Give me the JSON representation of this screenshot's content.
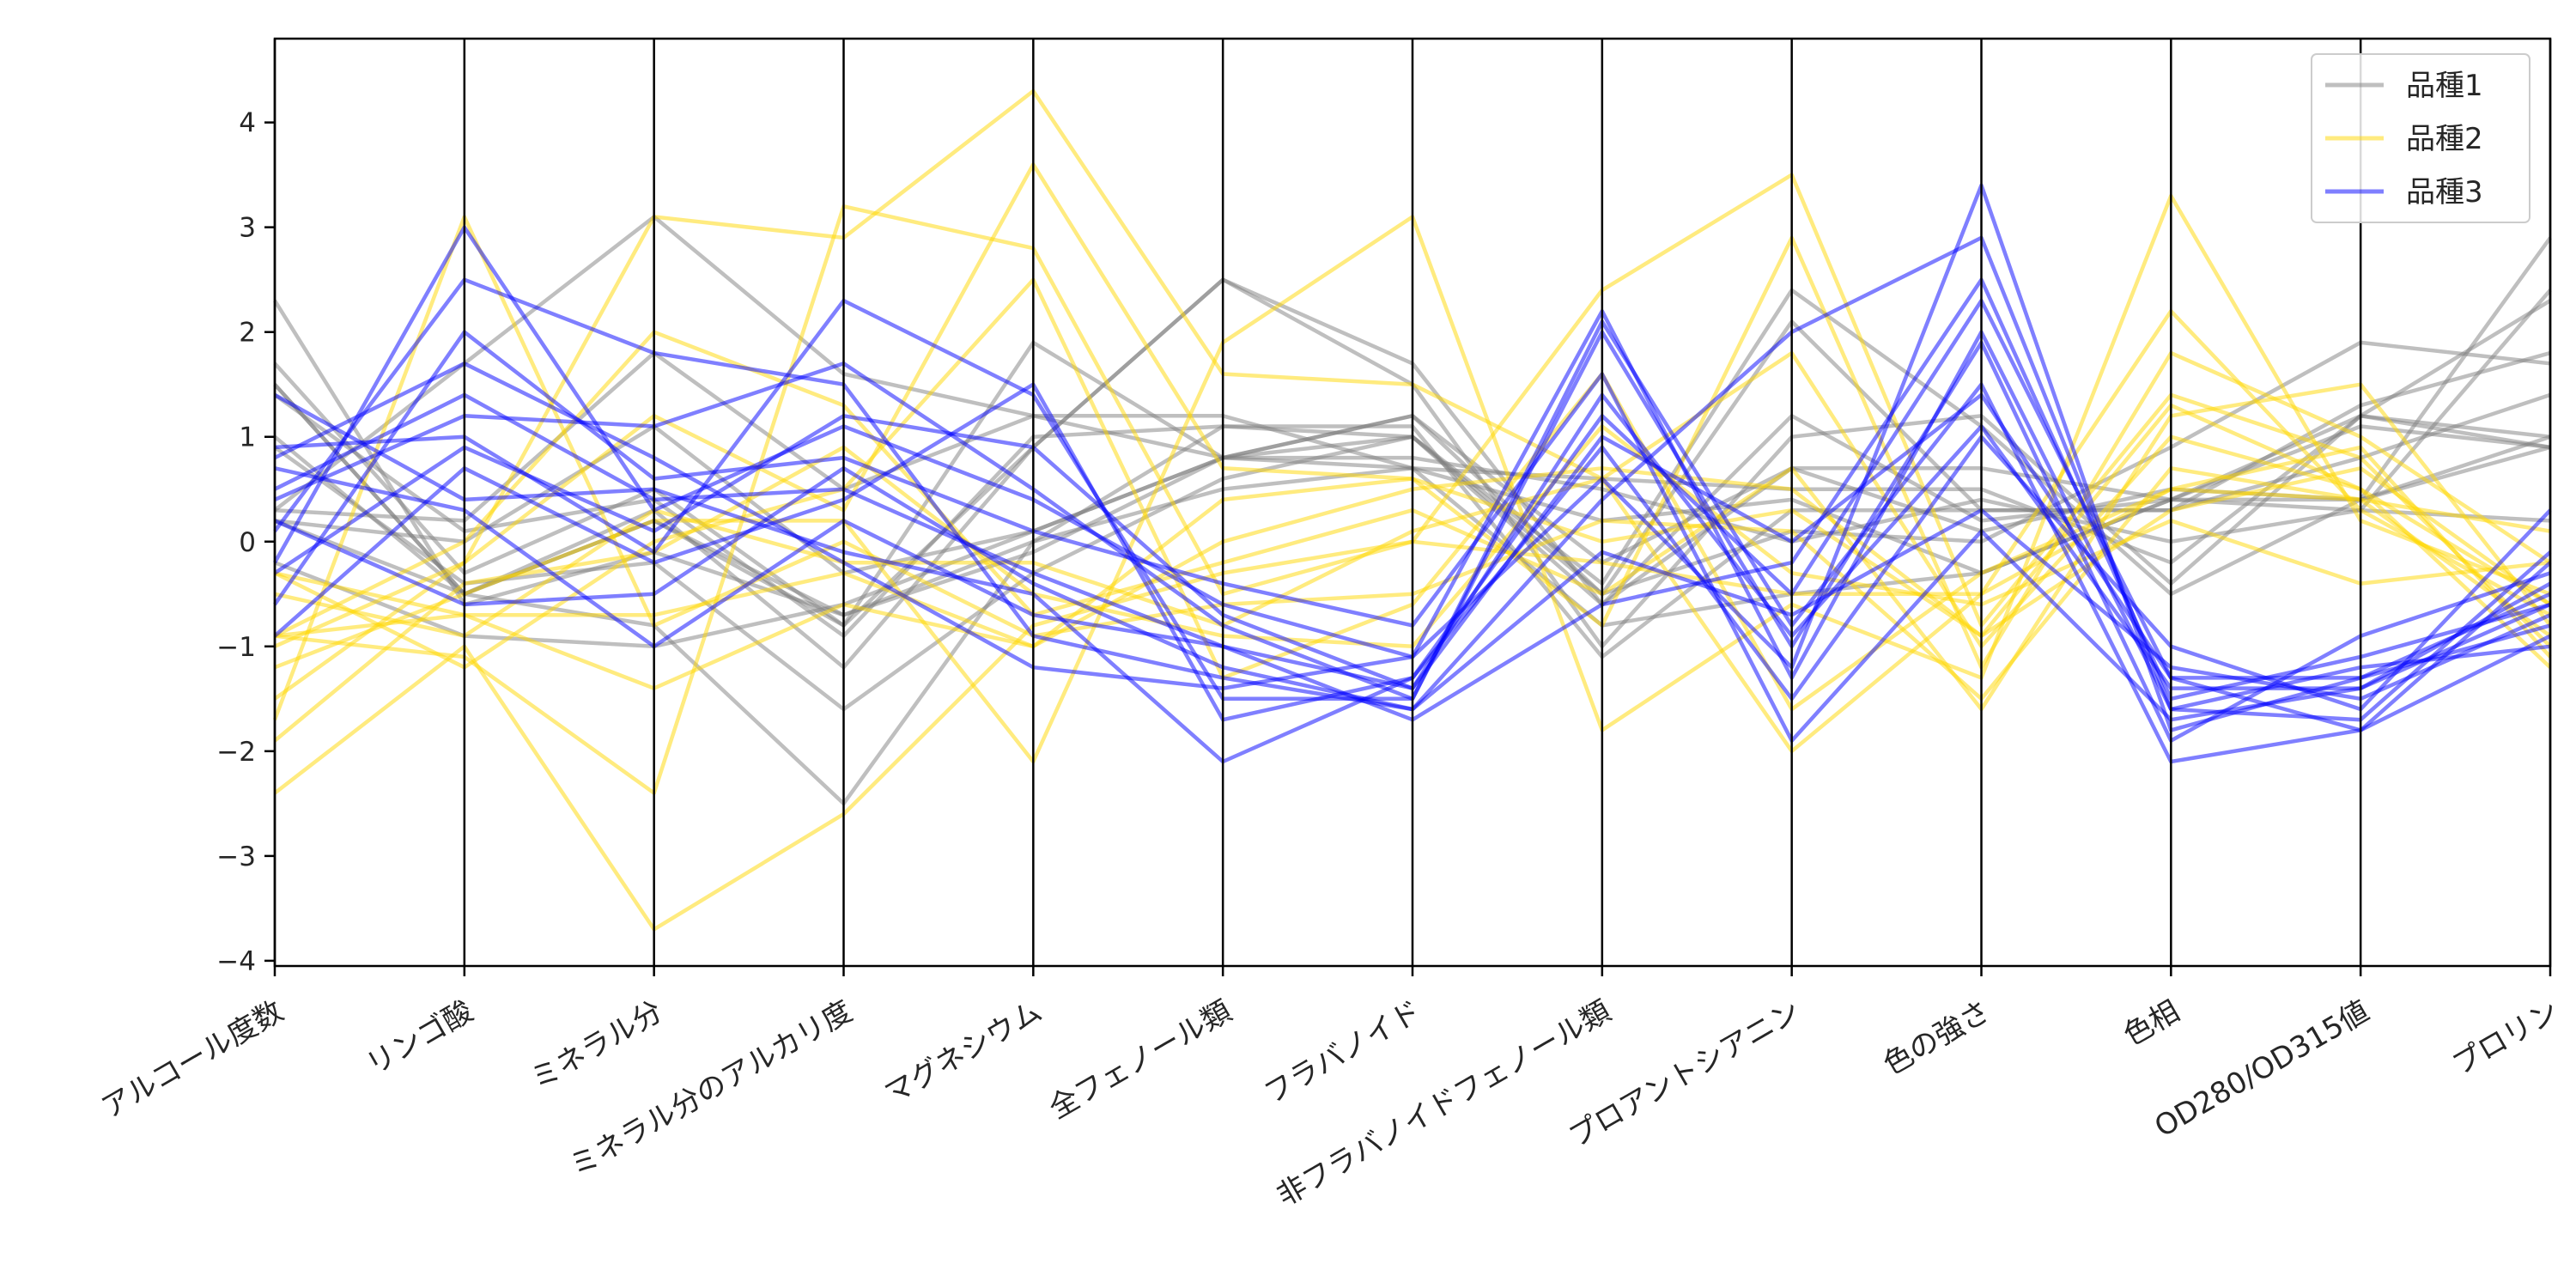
{
  "chart_data": {
    "type": "line",
    "subtype": "parallel-coordinates",
    "title": "",
    "xlabel": "",
    "ylabel": "",
    "categories": [
      "アルコール度数",
      "リンゴ酸",
      "ミネラル分",
      "ミネラル分のアルカリ度",
      "マグネシウム",
      "全フェノール類",
      "フラバノイド",
      "非フラバノイドフェノール類",
      "プロアントシアニン",
      "色の強さ",
      "色相",
      "OD280/OD315値",
      "プロリン"
    ],
    "yticks": [
      -4,
      -3,
      -2,
      -1,
      0,
      1,
      2,
      3,
      4
    ],
    "ytick_labels": [
      "−4",
      "−3",
      "−2",
      "−1",
      "0",
      "1",
      "2",
      "3",
      "4"
    ],
    "ylim": [
      -4.05,
      4.8
    ],
    "grid": false,
    "legend": {
      "position": "top-right",
      "entries": [
        "品種1",
        "品種2",
        "品種3"
      ]
    },
    "colors": {
      "品種1": "#808080",
      "品種2": "#ffd700",
      "品種3": "#0000ff"
    },
    "line_alpha": 0.5,
    "series": [
      {
        "name": "品種1",
        "color": "#808080",
        "representative_lines": [
          [
            1.5,
            -0.5,
            0.2,
            -0.8,
            1.9,
            0.8,
            1.0,
            -0.6,
            1.2,
            0.2,
            0.4,
            1.2,
            1.0
          ],
          [
            0.2,
            -0.5,
            -0.8,
            -2.5,
            0.0,
            0.5,
            0.7,
            -0.8,
            -0.5,
            -0.3,
            0.4,
            1.1,
            0.9
          ],
          [
            0.2,
            0.0,
            1.1,
            -0.3,
            0.1,
            0.8,
            1.2,
            -0.5,
            2.1,
            0.3,
            0.3,
            0.8,
            1.4
          ],
          [
            1.7,
            -0.3,
            0.5,
            -0.8,
            0.9,
            2.5,
            1.5,
            -1.0,
            1.0,
            1.2,
            -0.4,
            1.2,
            2.3
          ],
          [
            0.3,
            0.2,
            1.8,
            0.5,
            1.2,
            0.8,
            0.7,
            0.2,
            0.4,
            -0.3,
            0.4,
            0.4,
            0.9
          ],
          [
            1.5,
            -0.5,
            0.3,
            -1.2,
            0.9,
            2.5,
            1.7,
            -0.6,
            0.7,
            0.7,
            0.4,
            0.3,
            2.4
          ],
          [
            0.9,
            -0.4,
            -0.2,
            -1.6,
            -0.3,
            0.6,
            1.0,
            -0.5,
            0.1,
            0.0,
            0.9,
            1.9,
            1.7
          ],
          [
            1.4,
            0.1,
            0.4,
            -0.9,
            1.0,
            1.1,
            1.1,
            -1.1,
            0.3,
            0.3,
            0.3,
            1.3,
            1.8
          ],
          [
            2.3,
            -0.6,
            -0.1,
            -0.7,
            0.0,
            1.1,
            1.0,
            -0.4,
            2.4,
            1.1,
            -0.5,
            0.4,
            1.0
          ],
          [
            1.0,
            -0.5,
            0.2,
            -0.7,
            -0.1,
            0.8,
            1.2,
            -0.2,
            0.7,
            0.1,
            0.5,
            0.4,
            2.9
          ],
          [
            0.3,
            1.7,
            3.1,
            1.6,
            1.2,
            1.2,
            0.7,
            0.6,
            0.5,
            0.5,
            -0.2,
            1.2,
            0.9
          ],
          [
            -0.2,
            -0.9,
            -1.0,
            -0.6,
            0.1,
            0.8,
            0.8,
            0.5,
            0.0,
            0.4,
            0.0,
            0.3,
            0.2
          ]
        ]
      },
      {
        "name": "品種2",
        "color": "#ffd700",
        "representative_lines": [
          [
            -0.9,
            -0.7,
            -1.4,
            -0.6,
            -1.0,
            0.0,
            0.5,
            0.7,
            0.5,
            -0.9,
            0.3,
            0.7,
            -0.6
          ],
          [
            -1.5,
            -0.2,
            3.1,
            2.9,
            4.3,
            1.6,
            1.5,
            0.6,
            1.8,
            -1.0,
            1.0,
            0.5,
            -0.6
          ],
          [
            -2.4,
            -1.0,
            -3.7,
            -2.6,
            -0.8,
            -0.3,
            0.0,
            -0.2,
            -0.5,
            -0.5,
            2.2,
            0.3,
            -0.7
          ],
          [
            -1.7,
            3.1,
            -0.8,
            0.0,
            -0.9,
            -0.6,
            -0.5,
            0.2,
            0.1,
            -1.5,
            0.7,
            0.4,
            -0.9
          ],
          [
            -0.9,
            -1.1,
            -2.4,
            3.2,
            2.8,
            -0.5,
            0.0,
            2.4,
            3.5,
            -0.8,
            1.4,
            0.8,
            -1.0
          ],
          [
            -1.2,
            -0.5,
            0.2,
            0.2,
            -2.1,
            1.9,
            3.1,
            -1.8,
            -0.6,
            -1.3,
            3.3,
            0.2,
            -0.5
          ],
          [
            -0.5,
            -0.9,
            0.3,
            -0.2,
            -0.2,
            -0.8,
            0.1,
            0.6,
            -2.0,
            -0.5,
            0.5,
            0.4,
            0.1
          ],
          [
            -1.0,
            -0.2,
            1.2,
            0.3,
            3.6,
            0.7,
            0.6,
            -0.8,
            2.9,
            -1.2,
            1.8,
            1.0,
            -0.2
          ],
          [
            -0.3,
            -1.2,
            0.0,
            0.5,
            2.5,
            -1.3,
            -0.6,
            1.6,
            -1.6,
            -0.3,
            0.5,
            0.9,
            -1.1
          ],
          [
            -0.9,
            0.0,
            2.0,
            1.3,
            -0.7,
            -0.2,
            0.3,
            -0.5,
            0.7,
            -1.6,
            1.2,
            1.5,
            -0.8
          ],
          [
            -0.3,
            -0.7,
            -0.7,
            -0.3,
            -1.0,
            0.4,
            0.6,
            0.0,
            0.3,
            -0.9,
            1.3,
            0.5,
            -1.2
          ],
          [
            -1.9,
            -0.4,
            -0.1,
            0.9,
            -0.5,
            -0.9,
            -1.0,
            1.1,
            -0.3,
            -0.6,
            0.2,
            -0.4,
            -0.2
          ]
        ]
      },
      {
        "name": "品種3",
        "color": "#0000ff",
        "representative_lines": [
          [
            0.5,
            1.4,
            0.4,
            0.5,
            -0.3,
            -1.0,
            -1.4,
            1.4,
            -0.9,
            1.1,
            -1.4,
            -1.4,
            -0.6
          ],
          [
            -0.2,
            3.0,
            0.3,
            1.1,
            0.4,
            -0.6,
            -1.1,
            0.6,
            -1.2,
            3.4,
            -1.8,
            -1.3,
            -0.5
          ],
          [
            0.9,
            1.0,
            -0.1,
            2.3,
            1.4,
            -1.5,
            -1.5,
            2.1,
            -0.8,
            1.5,
            -2.1,
            -1.8,
            -0.2
          ],
          [
            0.1,
            2.5,
            1.8,
            1.5,
            -0.9,
            -1.3,
            -1.6,
            0.4,
            2.0,
            2.9,
            -1.6,
            -1.2,
            -1.0
          ],
          [
            -0.9,
            0.7,
            -0.2,
            0.4,
            1.5,
            -1.7,
            -1.3,
            0.9,
            -1.5,
            1.0,
            -1.0,
            -1.6,
            0.3
          ],
          [
            1.4,
            0.4,
            0.5,
            -0.1,
            -0.5,
            -2.1,
            -1.3,
            1.2,
            -0.5,
            2.3,
            -1.3,
            -1.8,
            -0.9
          ],
          [
            -0.6,
            2.0,
            0.6,
            0.8,
            0.1,
            -0.4,
            -0.8,
            1.6,
            -1.9,
            0.1,
            -1.7,
            -1.4,
            -0.4
          ],
          [
            0.7,
            0.3,
            -1.0,
            0.2,
            -0.7,
            -1.0,
            -1.7,
            -0.6,
            -0.2,
            2.5,
            -1.5,
            -1.1,
            -0.6
          ],
          [
            0.4,
            1.2,
            1.1,
            1.7,
            0.5,
            -0.8,
            -1.5,
            2.0,
            -1.0,
            1.9,
            -1.9,
            -0.9,
            -0.3
          ],
          [
            0.2,
            -0.6,
            -0.5,
            0.7,
            -0.4,
            -1.2,
            -1.6,
            -0.1,
            -0.7,
            0.3,
            -1.2,
            -1.5,
            -0.7
          ],
          [
            0.8,
            1.7,
            0.8,
            -0.2,
            -1.2,
            -1.4,
            -1.1,
            2.2,
            -1.3,
            2.0,
            -1.6,
            -1.7,
            -0.1
          ],
          [
            -0.3,
            0.9,
            0.1,
            1.2,
            0.9,
            -0.7,
            -1.4,
            1.0,
            0.0,
            1.4,
            -1.3,
            -1.3,
            -0.8
          ]
        ]
      }
    ]
  }
}
